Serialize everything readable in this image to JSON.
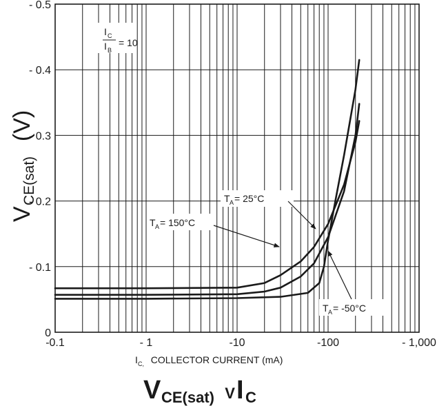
{
  "chart_data": {
    "type": "line",
    "x_scale": "log",
    "xlim": [
      -0.1,
      -1000
    ],
    "ylim": [
      0,
      -0.5
    ],
    "grid": true,
    "x_ticks": [
      "-0.1",
      "- 1",
      "-10",
      "-100",
      "- 1,000"
    ],
    "y_ticks": [
      "0",
      "- 0.1",
      "- 0.2",
      "- 0.3",
      "- 0.4",
      "- 0.5"
    ],
    "xlabel": {
      "main": "I",
      "sub": "C,",
      "rest": "  COLLECTOR CURRENT (mA)"
    },
    "ylabel": {
      "main": "V",
      "sub": "CE(sat)",
      "rest": "  (V)"
    },
    "title": {
      "main": "V",
      "sub": "CE(sat)",
      "mid": "  V  ",
      "main2": "I",
      "sub2": "C"
    },
    "condition": {
      "num_main": "I",
      "num_sub": "C",
      "den_main": "I",
      "den_sub": "B",
      "value": "= 10"
    },
    "series": [
      {
        "name": "T_A = 150°C",
        "label": {
          "main": "T",
          "sub": "A",
          "rest": " = 150°C"
        },
        "x": [
          -0.1,
          -1,
          -10,
          -20,
          -30,
          -50,
          -70,
          -100,
          -150,
          -200,
          -220
        ],
        "y": [
          -0.067,
          -0.067,
          -0.068,
          -0.075,
          -0.087,
          -0.108,
          -0.13,
          -0.165,
          -0.225,
          -0.29,
          -0.322
        ]
      },
      {
        "name": "T_A = 25°C",
        "label": {
          "main": "T",
          "sub": "A",
          "rest": " = 25°C"
        },
        "x": [
          -0.1,
          -1,
          -10,
          -20,
          -30,
          -50,
          -70,
          -100,
          -150,
          -200,
          -220
        ],
        "y": [
          -0.057,
          -0.057,
          -0.058,
          -0.062,
          -0.068,
          -0.085,
          -0.105,
          -0.145,
          -0.215,
          -0.3,
          -0.348
        ]
      },
      {
        "name": "T_A = -50°C",
        "label": {
          "main": "T",
          "sub": "A",
          "rest": " = -50°C"
        },
        "x": [
          -0.1,
          -1,
          -10,
          -30,
          -60,
          -80,
          -90,
          -100,
          -120,
          -150,
          -200,
          -220
        ],
        "y": [
          -0.051,
          -0.051,
          -0.052,
          -0.054,
          -0.06,
          -0.075,
          -0.1,
          -0.14,
          -0.2,
          -0.27,
          -0.37,
          -0.415
        ]
      }
    ]
  }
}
